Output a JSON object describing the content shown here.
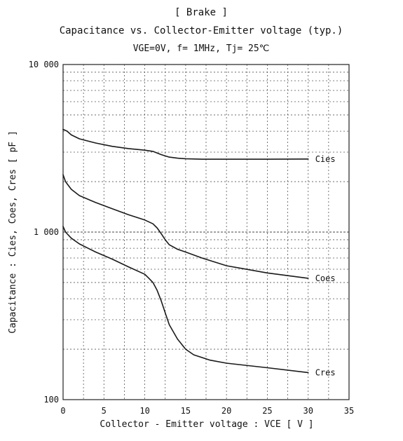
{
  "chart_data": {
    "type": "line",
    "title": "[ Brake ]",
    "subtitle": "Capacitance vs. Collector-Emitter voltage (typ.)",
    "conditions": "VGE=0V, f= 1MHz, Tj= 25℃",
    "xlabel": "Collector - Emitter voltage : VCE [ V ]",
    "ylabel": "Capacitance : Cies, Coes, Cres [ pF ]",
    "xlim": [
      0,
      35
    ],
    "ylim": [
      100,
      10000
    ],
    "yscale": "log",
    "grid": true,
    "x_ticks": [
      "0",
      "5",
      "10",
      "15",
      "20",
      "25",
      "30",
      "35"
    ],
    "y_ticks": [
      "100",
      "1 000",
      "10 000"
    ],
    "series": [
      {
        "name": "Cies",
        "x": [
          0,
          0.5,
          1,
          2,
          4,
          6,
          8,
          10,
          11,
          12,
          13,
          14,
          15,
          17,
          20,
          25,
          30
        ],
        "y": [
          4100,
          4000,
          3800,
          3600,
          3400,
          3250,
          3150,
          3080,
          3030,
          2900,
          2800,
          2760,
          2740,
          2720,
          2720,
          2720,
          2730
        ]
      },
      {
        "name": "Coes",
        "x": [
          0,
          0.3,
          1,
          2,
          4,
          6,
          8,
          10,
          11,
          11.5,
          12,
          12.5,
          13,
          14,
          15,
          17,
          20,
          25,
          30
        ],
        "y": [
          2200,
          2000,
          1800,
          1650,
          1500,
          1380,
          1270,
          1180,
          1120,
          1060,
          980,
          900,
          840,
          790,
          760,
          700,
          630,
          570,
          530
        ]
      },
      {
        "name": "Cres",
        "x": [
          0,
          0.3,
          1,
          2,
          4,
          6,
          8,
          10,
          10.5,
          11,
          11.5,
          12,
          12.5,
          13,
          14,
          15,
          16,
          18,
          20,
          25,
          30
        ],
        "y": [
          1080,
          1000,
          920,
          850,
          760,
          690,
          620,
          560,
          530,
          500,
          450,
          390,
          330,
          280,
          230,
          200,
          185,
          172,
          165,
          155,
          145
        ]
      }
    ]
  }
}
